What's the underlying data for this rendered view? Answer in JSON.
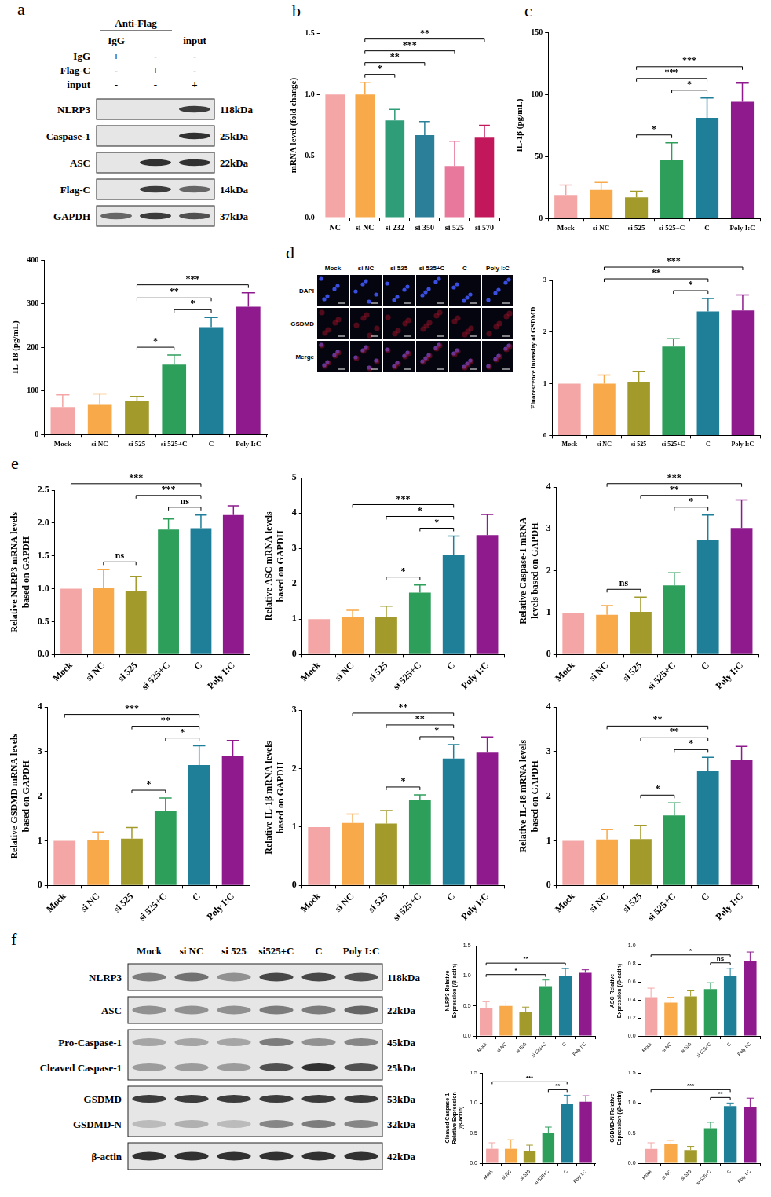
{
  "panel_letters": [
    "a",
    "b",
    "c",
    "d",
    "e",
    "f"
  ],
  "blot_a": {
    "header": "Anti-Flag",
    "column_heads": [
      "IgG",
      null,
      "input"
    ],
    "conditions": [
      {
        "label": "IgG",
        "signs": [
          "+",
          "-",
          "-"
        ]
      },
      {
        "label": "Flag-C",
        "signs": [
          "-",
          "+",
          "-"
        ]
      },
      {
        "label": "input",
        "signs": [
          "-",
          "-",
          "+"
        ]
      }
    ],
    "rows": [
      {
        "label": "NLRP3",
        "kda": "118kDa",
        "bands": [
          0,
          0,
          0.8
        ]
      },
      {
        "label": "Caspase-1",
        "kda": "25kDa",
        "bands": [
          0,
          0,
          0.85
        ]
      },
      {
        "label": "ASC",
        "kda": "22kDa",
        "bands": [
          0,
          0.85,
          0.85
        ]
      },
      {
        "label": "Flag-C",
        "kda": "14kDa",
        "bands": [
          0,
          0.8,
          0.6
        ]
      },
      {
        "label": "GAPDH",
        "kda": "37kDa",
        "bands": [
          0.6,
          0.8,
          0.7
        ]
      }
    ]
  },
  "if_images": {
    "columns": [
      "Mock",
      "si NC",
      "si 525",
      "si 525+C",
      "C",
      "Poly I:C"
    ],
    "rows": [
      "DAPI",
      "GSDMD",
      "Merge"
    ]
  },
  "blot_f": {
    "lanes": [
      "Mock",
      "si NC",
      "si 525",
      "si525+C",
      "C",
      "Poly I:C"
    ],
    "boxes": [
      [
        {
          "label": "NLRP3",
          "kda": "118kDa",
          "bands": [
            0.5,
            0.55,
            0.4,
            0.75,
            0.75,
            0.7
          ]
        }
      ],
      [
        {
          "label": "ASC",
          "kda": "22kDa",
          "bands": [
            0.4,
            0.4,
            0.4,
            0.5,
            0.5,
            0.6
          ]
        }
      ],
      [
        {
          "label": "Pro-Caspase-1",
          "kda": "45kDa",
          "bands": [
            0.3,
            0.3,
            0.3,
            0.5,
            0.4,
            0.45
          ]
        },
        {
          "label": "Cleaved Caspase-1",
          "kda": "25kDa",
          "bands": [
            0.35,
            0.35,
            0.35,
            0.7,
            0.85,
            0.7
          ]
        }
      ],
      [
        {
          "label": "GSDMD",
          "kda": "53kDa",
          "bands": [
            0.8,
            0.8,
            0.8,
            0.8,
            0.8,
            0.8
          ]
        },
        {
          "label": "GSDMD-N",
          "kda": "32kDa",
          "bands": [
            0.2,
            0.25,
            0.2,
            0.45,
            0.5,
            0.45
          ]
        }
      ],
      [
        {
          "label": "β-actin",
          "kda": "42kDa",
          "bands": [
            0.85,
            0.85,
            0.85,
            0.85,
            0.85,
            0.85
          ]
        }
      ]
    ]
  },
  "chart_data": [
    {
      "type": "bar",
      "ylabel": "mRNA level (fold change)",
      "categories": [
        "NC",
        "si NC",
        "si 232",
        "si 350",
        "si 525",
        "si 570"
      ],
      "values": [
        1.0,
        1.0,
        0.79,
        0.67,
        0.42,
        0.65
      ],
      "errors": [
        0,
        0.1,
        0.09,
        0.11,
        0.2,
        0.1
      ],
      "colors": [
        "#f4a6a6",
        "#f8a94a",
        "#2e9d78",
        "#2b7f99",
        "#e8789c",
        "#c2185b"
      ],
      "ylim": [
        0,
        1.5
      ],
      "yticks": [
        {
          "value": 0,
          "label": "0.0"
        },
        {
          "value": 0.5,
          "label": "0.5"
        },
        {
          "value": 1,
          "label": "1.0"
        },
        {
          "value": 1.5,
          "label": "1.5"
        }
      ],
      "grid": false,
      "brackets": [
        {
          "from": "si NC",
          "to": "si 232",
          "label": "*"
        },
        {
          "from": "si NC",
          "to": "si 350",
          "label": "**"
        },
        {
          "from": "si NC",
          "to": "si 525",
          "label": "***"
        },
        {
          "from": "si NC",
          "to": "si 570",
          "label": "**"
        }
      ]
    },
    {
      "type": "bar",
      "ylabel": "IL-1β (pg/mL)",
      "categories": [
        "Mock",
        "si NC",
        "si 525",
        "si 525+C",
        "C",
        "Poly I:C"
      ],
      "values": [
        19,
        23,
        17,
        47,
        81,
        94
      ],
      "errors": [
        8,
        6,
        5,
        14,
        16,
        15
      ],
      "colors": [
        "#f4a6a6",
        "#f8a94a",
        "#a29b2c",
        "#2e9e5b",
        "#1f7f99",
        "#8e1a8e"
      ],
      "ylim": [
        0,
        150
      ],
      "yticks": [
        0,
        50,
        100,
        150
      ],
      "grid": false,
      "brackets": [
        {
          "from": "si 525",
          "to": "si 525+C",
          "label": "*"
        },
        {
          "from": "si 525+C",
          "to": "C",
          "label": "*"
        },
        {
          "from": "si 525",
          "to": "C",
          "label": "***"
        },
        {
          "from": "si 525",
          "to": "Poly I:C",
          "label": "***"
        }
      ]
    },
    {
      "type": "bar",
      "ylabel": "IL-18 (pg/mL)",
      "categories": [
        "Mock",
        "si NC",
        "si 525",
        "si 525+C",
        "C",
        "Poly I:C"
      ],
      "values": [
        63,
        68,
        77,
        160,
        246,
        293
      ],
      "errors": [
        28,
        25,
        10,
        22,
        22,
        32
      ],
      "colors": [
        "#f4a6a6",
        "#f8a94a",
        "#a29b2c",
        "#2e9e5b",
        "#1f7f99",
        "#8e1a8e"
      ],
      "ylim": [
        0,
        400
      ],
      "yticks": [
        0,
        100,
        200,
        300,
        400
      ],
      "grid": false,
      "brackets": [
        {
          "from": "si 525",
          "to": "si 525+C",
          "label": "*"
        },
        {
          "from": "si 525+C",
          "to": "C",
          "label": "*"
        },
        {
          "from": "si 525",
          "to": "C",
          "label": "**"
        },
        {
          "from": "si 525",
          "to": "Poly I:C",
          "label": "***"
        }
      ]
    },
    {
      "type": "bar",
      "ylabel": "Fluorescence intensity of GSDMD",
      "categories": [
        "Mock",
        "si NC",
        "si 525",
        "si 525+C",
        "C",
        "Poly I:C"
      ],
      "values": [
        1.0,
        1.0,
        1.04,
        1.72,
        2.4,
        2.42
      ],
      "errors": [
        0,
        0.17,
        0.2,
        0.15,
        0.25,
        0.3
      ],
      "colors": [
        "#f4a6a6",
        "#f8a94a",
        "#a29b2c",
        "#2e9e5b",
        "#1f7f99",
        "#8e1a8e"
      ],
      "ylim": [
        0,
        3
      ],
      "yticks": [
        0,
        1,
        2,
        3
      ],
      "grid": false,
      "brackets": [
        {
          "from": "si 525+C",
          "to": "C",
          "label": "*"
        },
        {
          "from": "si NC",
          "to": "C",
          "label": "**"
        },
        {
          "from": "si NC",
          "to": "Poly I:C",
          "label": "***"
        }
      ]
    },
    {
      "type": "bar",
      "ylabel": "Relative NLRP3 mRNA levels based on GAPDH",
      "categories": [
        "Mock",
        "si NC",
        "si 525",
        "si 525+C",
        "C",
        "Poly I:C"
      ],
      "values": [
        1.0,
        1.02,
        0.96,
        1.9,
        1.92,
        2.12
      ],
      "errors": [
        0,
        0.27,
        0.23,
        0.16,
        0.2,
        0.14
      ],
      "colors": [
        "#f4a6a6",
        "#f8a94a",
        "#a29b2c",
        "#2e9e5b",
        "#1f7f99",
        "#8e1a8e"
      ],
      "ylim": [
        0,
        2.5
      ],
      "yticks": [
        {
          "value": 0,
          "label": "0.0"
        },
        {
          "value": 0.5,
          "label": "0.5"
        },
        {
          "value": 1,
          "label": "1.0"
        },
        {
          "value": 1.5,
          "label": "1.5"
        },
        {
          "value": 2,
          "label": "2.0"
        },
        {
          "value": 2.5,
          "label": "2.5"
        }
      ],
      "grid": false,
      "brackets": [
        {
          "from": "si NC",
          "to": "si 525",
          "label": "ns"
        },
        {
          "from": "si 525+C",
          "to": "C",
          "label": "ns"
        },
        {
          "from": "si 525",
          "to": "C",
          "label": "***"
        },
        {
          "from": "Mock",
          "to": "C",
          "label": "***"
        }
      ]
    },
    {
      "type": "bar",
      "ylabel": "Relative ASC mRNA levels based on GAPDH",
      "categories": [
        "Mock",
        "si NC",
        "si 525",
        "si 525+C",
        "C",
        "Poly I:C"
      ],
      "values": [
        1.0,
        1.07,
        1.07,
        1.75,
        2.83,
        3.38
      ],
      "errors": [
        0,
        0.18,
        0.3,
        0.22,
        0.52,
        0.58
      ],
      "colors": [
        "#f4a6a6",
        "#f8a94a",
        "#a29b2c",
        "#2e9e5b",
        "#1f7f99",
        "#8e1a8e"
      ],
      "ylim": [
        0,
        5
      ],
      "yticks": [
        0,
        1,
        2,
        3,
        4,
        5
      ],
      "grid": false,
      "brackets": [
        {
          "from": "si 525",
          "to": "si 525+C",
          "label": "*"
        },
        {
          "from": "si 525+C",
          "to": "C",
          "label": "*"
        },
        {
          "from": "si 525",
          "to": "C",
          "label": "*"
        },
        {
          "from": "si NC",
          "to": "C",
          "label": "***"
        }
      ]
    },
    {
      "type": "bar",
      "ylabel": "Relative Caspase-1 mRNA levels based on GAPDH",
      "categories": [
        "Mock",
        "si NC",
        "si 525",
        "si 525+C",
        "C",
        "Poly I:C"
      ],
      "values": [
        1.0,
        0.95,
        1.02,
        1.65,
        2.73,
        3.02
      ],
      "errors": [
        0,
        0.22,
        0.35,
        0.3,
        0.6,
        0.67
      ],
      "colors": [
        "#f4a6a6",
        "#f8a94a",
        "#a29b2c",
        "#2e9e5b",
        "#1f7f99",
        "#8e1a8e"
      ],
      "ylim": [
        0,
        4
      ],
      "yticks": [
        0,
        1,
        2,
        3,
        4
      ],
      "grid": false,
      "brackets": [
        {
          "from": "si NC",
          "to": "si 525",
          "label": "ns"
        },
        {
          "from": "si 525+C",
          "to": "C",
          "label": "*"
        },
        {
          "from": "si 525",
          "to": "C",
          "label": "**"
        },
        {
          "from": "si NC",
          "to": "Poly I:C",
          "label": "***"
        }
      ]
    },
    {
      "type": "bar",
      "ylabel": "Relative GSDMD mRNA levels based on GAPDH",
      "categories": [
        "Mock",
        "si NC",
        "si 525",
        "si 525+C",
        "C",
        "Poly I:C"
      ],
      "values": [
        1.0,
        1.02,
        1.05,
        1.66,
        2.7,
        2.9
      ],
      "errors": [
        0,
        0.18,
        0.25,
        0.3,
        0.43,
        0.35
      ],
      "colors": [
        "#f4a6a6",
        "#f8a94a",
        "#a29b2c",
        "#2e9e5b",
        "#1f7f99",
        "#8e1a8e"
      ],
      "ylim": [
        0,
        4
      ],
      "yticks": [
        0,
        1,
        2,
        3,
        4
      ],
      "grid": false,
      "brackets": [
        {
          "from": "si 525",
          "to": "si 525+C",
          "label": "*"
        },
        {
          "from": "si 525+C",
          "to": "C",
          "label": "*"
        },
        {
          "from": "si 525",
          "to": "C",
          "label": "**"
        },
        {
          "from": "Mock",
          "to": "C",
          "label": "***"
        }
      ]
    },
    {
      "type": "bar",
      "ylabel": "Relative IL-1β mRNA levels based on GAPDH",
      "categories": [
        "Mock",
        "si NC",
        "si 525",
        "si 525+C",
        "C",
        "Poly I:C"
      ],
      "values": [
        1.0,
        1.07,
        1.06,
        1.47,
        2.17,
        2.27
      ],
      "errors": [
        0,
        0.15,
        0.22,
        0.08,
        0.24,
        0.27
      ],
      "colors": [
        "#f4a6a6",
        "#f8a94a",
        "#a29b2c",
        "#2e9e5b",
        "#1f7f99",
        "#8e1a8e"
      ],
      "ylim": [
        0,
        3
      ],
      "yticks": [
        0,
        1,
        2,
        3
      ],
      "grid": false,
      "brackets": [
        {
          "from": "si 525",
          "to": "si 525+C",
          "label": "*"
        },
        {
          "from": "si 525+C",
          "to": "C",
          "label": "*"
        },
        {
          "from": "si 525",
          "to": "C",
          "label": "**"
        },
        {
          "from": "si NC",
          "to": "C",
          "label": "**"
        }
      ]
    },
    {
      "type": "bar",
      "ylabel": "Relative IL-18 mRNA levels based on GAPDH",
      "categories": [
        "Mock",
        "si NC",
        "si 525",
        "si 525+C",
        "C",
        "Poly I:C"
      ],
      "values": [
        1.0,
        1.03,
        1.04,
        1.57,
        2.57,
        2.82
      ],
      "errors": [
        0,
        0.22,
        0.3,
        0.28,
        0.3,
        0.3
      ],
      "colors": [
        "#f4a6a6",
        "#f8a94a",
        "#a29b2c",
        "#2e9e5b",
        "#1f7f99",
        "#8e1a8e"
      ],
      "ylim": [
        0,
        4
      ],
      "yticks": [
        0,
        1,
        2,
        3,
        4
      ],
      "grid": false,
      "brackets": [
        {
          "from": "si 525",
          "to": "si 525+C",
          "label": "*"
        },
        {
          "from": "si 525+C",
          "to": "C",
          "label": "*"
        },
        {
          "from": "si 525",
          "to": "C",
          "label": "**"
        },
        {
          "from": "si NC",
          "to": "C",
          "label": "**"
        }
      ]
    },
    {
      "type": "bar",
      "ylabel": "NLRP3 Relative Expression (/β-actin)",
      "categories": [
        "Mock",
        "si NC",
        "si 525",
        "si 525+C",
        "C",
        "Poly I:C"
      ],
      "values": [
        0.47,
        0.5,
        0.4,
        0.83,
        1.0,
        1.05
      ],
      "errors": [
        0.1,
        0.08,
        0.08,
        0.1,
        0.12,
        0.05
      ],
      "colors": [
        "#f4a6a6",
        "#f8a94a",
        "#a29b2c",
        "#2e9e5b",
        "#1f7f99",
        "#8e1a8e"
      ],
      "ylim": [
        0,
        1.5
      ],
      "yticks": [
        {
          "value": 0,
          "label": "0.0"
        },
        {
          "value": 0.5,
          "label": "0.5"
        },
        {
          "value": 1,
          "label": "1.0"
        },
        {
          "value": 1.5,
          "label": "1.5"
        }
      ],
      "grid": false,
      "brackets": [
        {
          "from": "Mock",
          "to": "si 525+C",
          "label": "*"
        },
        {
          "from": "Mock",
          "to": "C",
          "label": "**"
        }
      ]
    },
    {
      "type": "bar",
      "ylabel": "ASC Relative Expression (/β-actin)",
      "categories": [
        "Mock",
        "si NC",
        "si 525",
        "si 525+C",
        "C",
        "Poly I:C"
      ],
      "values": [
        0.43,
        0.37,
        0.44,
        0.52,
        0.67,
        0.83
      ],
      "errors": [
        0.1,
        0.06,
        0.06,
        0.07,
        0.08,
        0.1
      ],
      "colors": [
        "#f4a6a6",
        "#f8a94a",
        "#a29b2c",
        "#2e9e5b",
        "#1f7f99",
        "#8e1a8e"
      ],
      "ylim": [
        0,
        1
      ],
      "yticks": [
        {
          "value": 0,
          "label": "0.0"
        },
        {
          "value": 0.2,
          "label": "0.2"
        },
        {
          "value": 0.4,
          "label": "0.4"
        },
        {
          "value": 0.6,
          "label": "0.6"
        },
        {
          "value": 0.8,
          "label": "0.8"
        },
        {
          "value": 1,
          "label": "1.0"
        }
      ],
      "grid": false,
      "brackets": [
        {
          "from": "si 525+C",
          "to": "C",
          "label": "ns"
        },
        {
          "from": "Mock",
          "to": "C",
          "label": "*"
        }
      ]
    },
    {
      "type": "bar",
      "ylabel": "Cleaved Caspase-1 Relative Expression (/β-actin)",
      "categories": [
        "Mock",
        "si NC",
        "si 525",
        "si 525+C",
        "C",
        "Poly I:C"
      ],
      "values": [
        0.24,
        0.24,
        0.2,
        0.5,
        0.98,
        1.02
      ],
      "errors": [
        0.1,
        0.15,
        0.1,
        0.1,
        0.15,
        0.1
      ],
      "colors": [
        "#f4a6a6",
        "#f8a94a",
        "#a29b2c",
        "#2e9e5b",
        "#1f7f99",
        "#8e1a8e"
      ],
      "ylim": [
        0,
        1.5
      ],
      "yticks": [
        {
          "value": 0,
          "label": "0.0"
        },
        {
          "value": 0.5,
          "label": "0.5"
        },
        {
          "value": 1,
          "label": "1.0"
        },
        {
          "value": 1.5,
          "label": "1.5"
        }
      ],
      "grid": false,
      "brackets": [
        {
          "from": "si 525+C",
          "to": "C",
          "label": "**"
        },
        {
          "from": "Mock",
          "to": "C",
          "label": "***"
        }
      ]
    },
    {
      "type": "bar",
      "ylabel": "GSDMD-N Relative Expression (/β-actin)",
      "categories": [
        "Mock",
        "si NC",
        "si 525",
        "si 525+C",
        "C",
        "Poly I:C"
      ],
      "values": [
        0.24,
        0.32,
        0.22,
        0.58,
        0.95,
        0.93
      ],
      "errors": [
        0.1,
        0.06,
        0.06,
        0.1,
        0.05,
        0.15
      ],
      "colors": [
        "#f4a6a6",
        "#f8a94a",
        "#a29b2c",
        "#2e9e5b",
        "#1f7f99",
        "#8e1a8e"
      ],
      "ylim": [
        0,
        1.5
      ],
      "yticks": [
        {
          "value": 0,
          "label": "0.0"
        },
        {
          "value": 0.5,
          "label": "0.5"
        },
        {
          "value": 1,
          "label": "1.0"
        },
        {
          "value": 1.5,
          "label": "1.5"
        }
      ],
      "grid": false,
      "brackets": [
        {
          "from": "si 525+C",
          "to": "C",
          "label": "**"
        },
        {
          "from": "Mock",
          "to": "C",
          "label": "***"
        }
      ]
    }
  ]
}
